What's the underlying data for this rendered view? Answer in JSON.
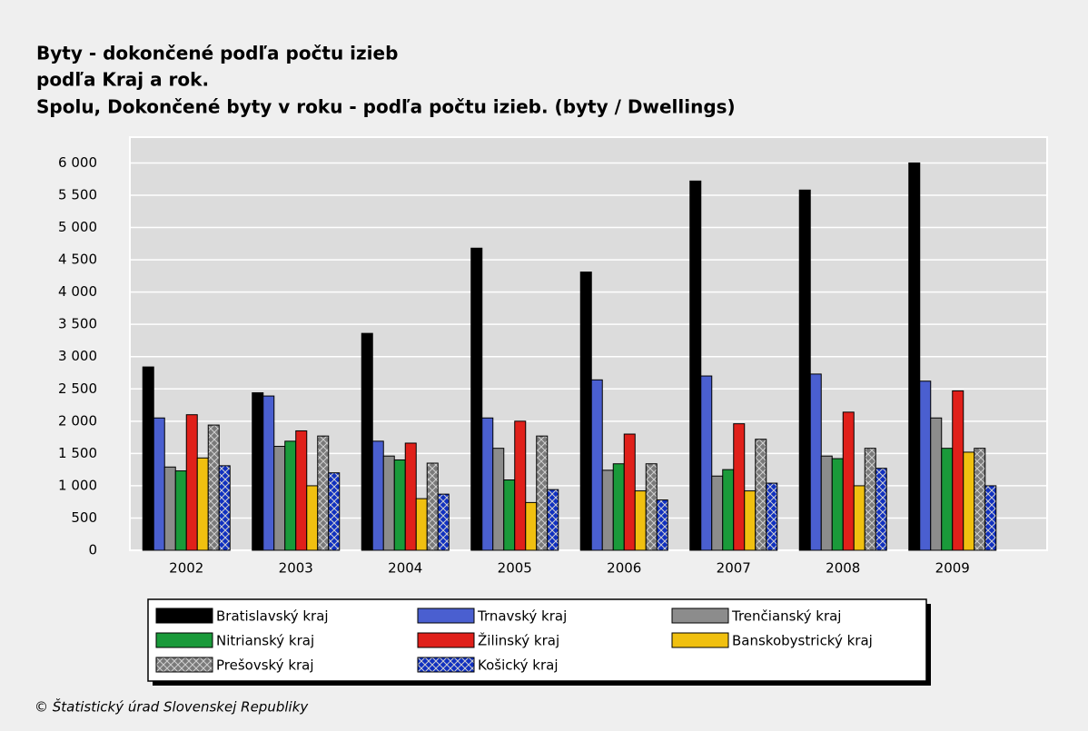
{
  "chart_data": {
    "type": "bar",
    "title": [
      "Byty - dokončené podľa počtu izieb",
      "podľa Kraj a rok.",
      "Spolu, Dokončené byty v roku - podľa počtu izieb. (byty / Dwellings)"
    ],
    "categories": [
      "2002",
      "2003",
      "2004",
      "2005",
      "2006",
      "2007",
      "2008",
      "2009"
    ],
    "series": [
      {
        "name": "Bratislavský kraj",
        "color": "#000000",
        "values": [
          2840,
          2440,
          3360,
          4680,
          4310,
          5720,
          5580,
          6000
        ]
      },
      {
        "name": "Trnavský kraj",
        "color": "#4a5fd0",
        "values": [
          2050,
          2390,
          1690,
          2050,
          2640,
          2700,
          2730,
          2620
        ]
      },
      {
        "name": "Trenčianský kraj",
        "color": "#8c8c8c",
        "values": [
          1290,
          1610,
          1460,
          1580,
          1240,
          1150,
          1460,
          2050
        ]
      },
      {
        "name": "Nitrianský kraj",
        "color": "#1a9a3a",
        "values": [
          1230,
          1690,
          1400,
          1090,
          1340,
          1250,
          1420,
          1580
        ]
      },
      {
        "name": "Žilinský kraj",
        "color": "#e0201a",
        "values": [
          2100,
          1850,
          1660,
          2000,
          1800,
          1960,
          2140,
          2470
        ]
      },
      {
        "name": "Banskobystrický kraj",
        "color": "#f0c010",
        "values": [
          1430,
          1000,
          800,
          740,
          920,
          920,
          1000,
          1520
        ]
      },
      {
        "name": "Prešovský kraj",
        "color": "#7a7a7a",
        "pattern": "crosshatch",
        "values": [
          1940,
          1770,
          1350,
          1770,
          1340,
          1720,
          1580,
          1580
        ]
      },
      {
        "name": "Košický kraj",
        "color": "#1030c0",
        "pattern": "crosshatch",
        "values": [
          1310,
          1200,
          870,
          940,
          780,
          1040,
          1270,
          1000
        ]
      }
    ],
    "ylim": [
      0,
      6400
    ],
    "yticks": [
      0,
      500,
      {
        "value": 1000,
        "label": "1 000"
      },
      {
        "value": 1500,
        "label": "1 500"
      },
      {
        "value": 2000,
        "label": "2 000"
      },
      {
        "value": 2500,
        "label": "2 500"
      },
      {
        "value": 3000,
        "label": "3 000"
      },
      {
        "value": 3500,
        "label": "3 500"
      },
      {
        "value": 4000,
        "label": "4 000"
      },
      {
        "value": 4500,
        "label": "4 500"
      },
      {
        "value": 5000,
        "label": "5 000"
      },
      {
        "value": 5500,
        "label": "5 500"
      },
      {
        "value": 6000,
        "label": "6 000"
      }
    ],
    "grid": true,
    "legend": "bottom",
    "footer": "© Štatistický úrad Slovenskej Republiky"
  }
}
